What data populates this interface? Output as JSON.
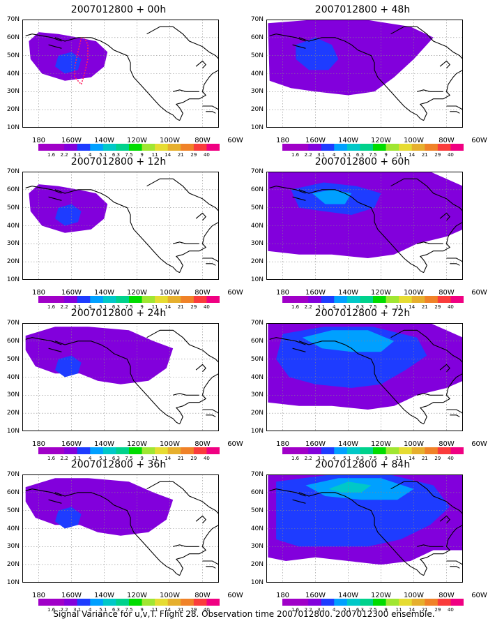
{
  "panels": [
    {
      "title": "2007012800 + 00h",
      "level": 0
    },
    {
      "title": "2007012800 + 48h",
      "level": 3
    },
    {
      "title": "2007012800 + 12h",
      "level": 1
    },
    {
      "title": "2007012800 + 60h",
      "level": 4
    },
    {
      "title": "2007012800 + 24h",
      "level": 2
    },
    {
      "title": "2007012800 + 72h",
      "level": 5
    },
    {
      "title": "2007012800 + 36h",
      "level": 2
    },
    {
      "title": "2007012800 + 84h",
      "level": 6
    }
  ],
  "lat_labels": [
    "70N",
    "60N",
    "50N",
    "40N",
    "30N",
    "20N",
    "10N"
  ],
  "lon_labels": [
    "180",
    "160W",
    "140W",
    "120W",
    "100W",
    "80W",
    "60W"
  ],
  "colorbar": {
    "labels": [
      "1.6",
      "2.2",
      "3.1",
      "4",
      "5.1",
      "6.3",
      "7.5",
      "9",
      "11",
      "14",
      "21",
      "29",
      "40"
    ],
    "colors": [
      "#a000c8",
      "#8200dc",
      "#1e3cff",
      "#00a0ff",
      "#00c8c8",
      "#00d28c",
      "#00dc00",
      "#a0e632",
      "#e6dc32",
      "#e6af2d",
      "#f08228",
      "#fa3c3c",
      "#f00082"
    ]
  },
  "caption": "Signal Variance for u,v,T. Flight 28. Observation time 2007012800. 2007012300 ensemble."
}
